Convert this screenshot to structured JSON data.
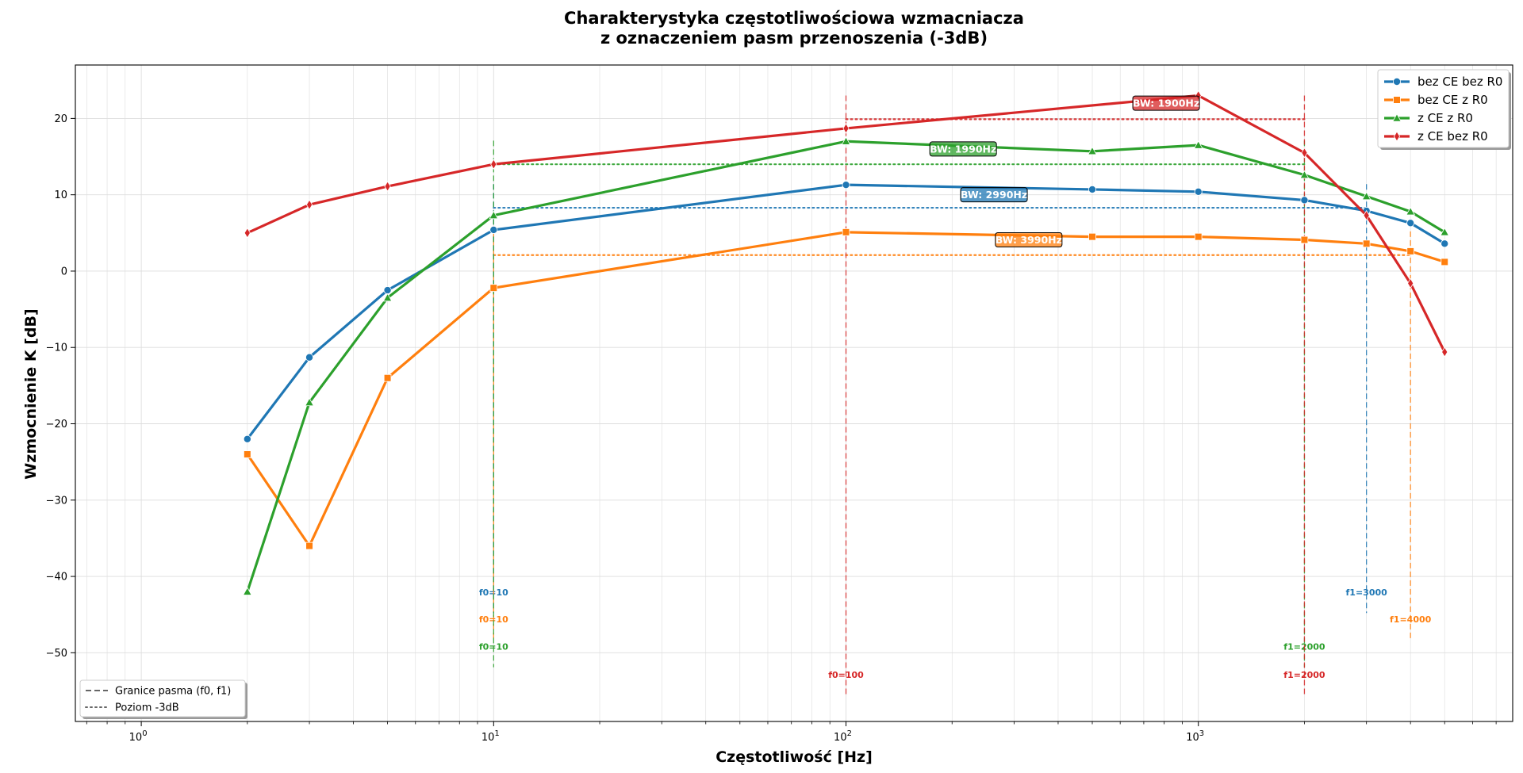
{
  "chart_data": {
    "type": "line",
    "title_line1": "Charakterystyka częstotliwościowa wzmacniacza",
    "title_line2": "z oznaczeniem pasm przenoszenia (-3dB)",
    "xlabel": "Częstotliwość [Hz]",
    "ylabel": "Wzmocnienie K [dB]",
    "xscale": "log",
    "xlim": [
      0.65,
      7800
    ],
    "ylim": [
      -59,
      27
    ],
    "grid": true,
    "xticks": [
      {
        "value": 1,
        "base": "10",
        "exp": "0"
      },
      {
        "value": 10,
        "base": "10",
        "exp": "1"
      },
      {
        "value": 100,
        "base": "10",
        "exp": "2"
      },
      {
        "value": 1000,
        "base": "10",
        "exp": "3"
      }
    ],
    "yticks": [
      {
        "value": 20,
        "label": "20"
      },
      {
        "value": 10,
        "label": "10"
      },
      {
        "value": 0,
        "label": "0"
      },
      {
        "value": -10,
        "label": "−10"
      },
      {
        "value": -20,
        "label": "−20"
      },
      {
        "value": -30,
        "label": "−30"
      },
      {
        "value": -40,
        "label": "−40"
      },
      {
        "value": -50,
        "label": "−50"
      }
    ],
    "x": [
      2,
      3,
      5,
      10,
      100,
      500,
      1000,
      2000,
      3000,
      4000,
      5000
    ],
    "series": [
      {
        "name": "bez CE bez R0",
        "color": "#1f77b4",
        "marker": "circle",
        "values": [
          -22,
          -11.3,
          -2.5,
          5.4,
          11.3,
          10.7,
          10.4,
          9.3,
          7.9,
          6.3,
          3.6
        ],
        "level_3db": 8.3,
        "f0": 10,
        "f1": 3000,
        "f0_label": "f0=10",
        "f1_label": "f1=3000",
        "bw_label": "BW: 2990Hz"
      },
      {
        "name": "bez CE z R0",
        "color": "#ff7f0e",
        "marker": "square",
        "values": [
          -24,
          -36,
          -14,
          -2.2,
          5.1,
          4.5,
          4.5,
          4.1,
          3.6,
          2.6,
          1.2
        ],
        "level_3db": 2.1,
        "f0": 10,
        "f1": 4000,
        "f0_label": "f0=10",
        "f1_label": "f1=4000",
        "bw_label": "BW: 3990Hz"
      },
      {
        "name": "z CE z R0",
        "color": "#2ca02c",
        "marker": "triangle",
        "values": [
          -42,
          -17.2,
          -3.5,
          7.3,
          17,
          15.7,
          16.5,
          12.6,
          9.8,
          7.8,
          5.1
        ],
        "level_3db": 14,
        "f0": 10,
        "f1": 2000,
        "f0_label": "f0=10",
        "f1_label": "f1=2000",
        "bw_label": "BW: 1990Hz"
      },
      {
        "name": "z CE bez R0",
        "color": "#d62728",
        "marker": "diamond",
        "values": [
          5,
          8.7,
          11.1,
          14,
          18.7,
          null,
          23,
          15.5,
          7.3,
          -1.6,
          -10.6
        ],
        "level_3db": 19.9,
        "f0": 100,
        "f1": 2000,
        "f0_label": "f0=100",
        "f1_label": "f1=2000",
        "bw_label": "BW: 1900Hz"
      }
    ],
    "legend_series_position": "top-right",
    "legend_styles_position": "bottom-left",
    "legend_styles": [
      {
        "label": "Granice pasma (f0, f1)",
        "style": "dashed"
      },
      {
        "label": "Poziom -3dB",
        "style": "dotted"
      }
    ]
  }
}
